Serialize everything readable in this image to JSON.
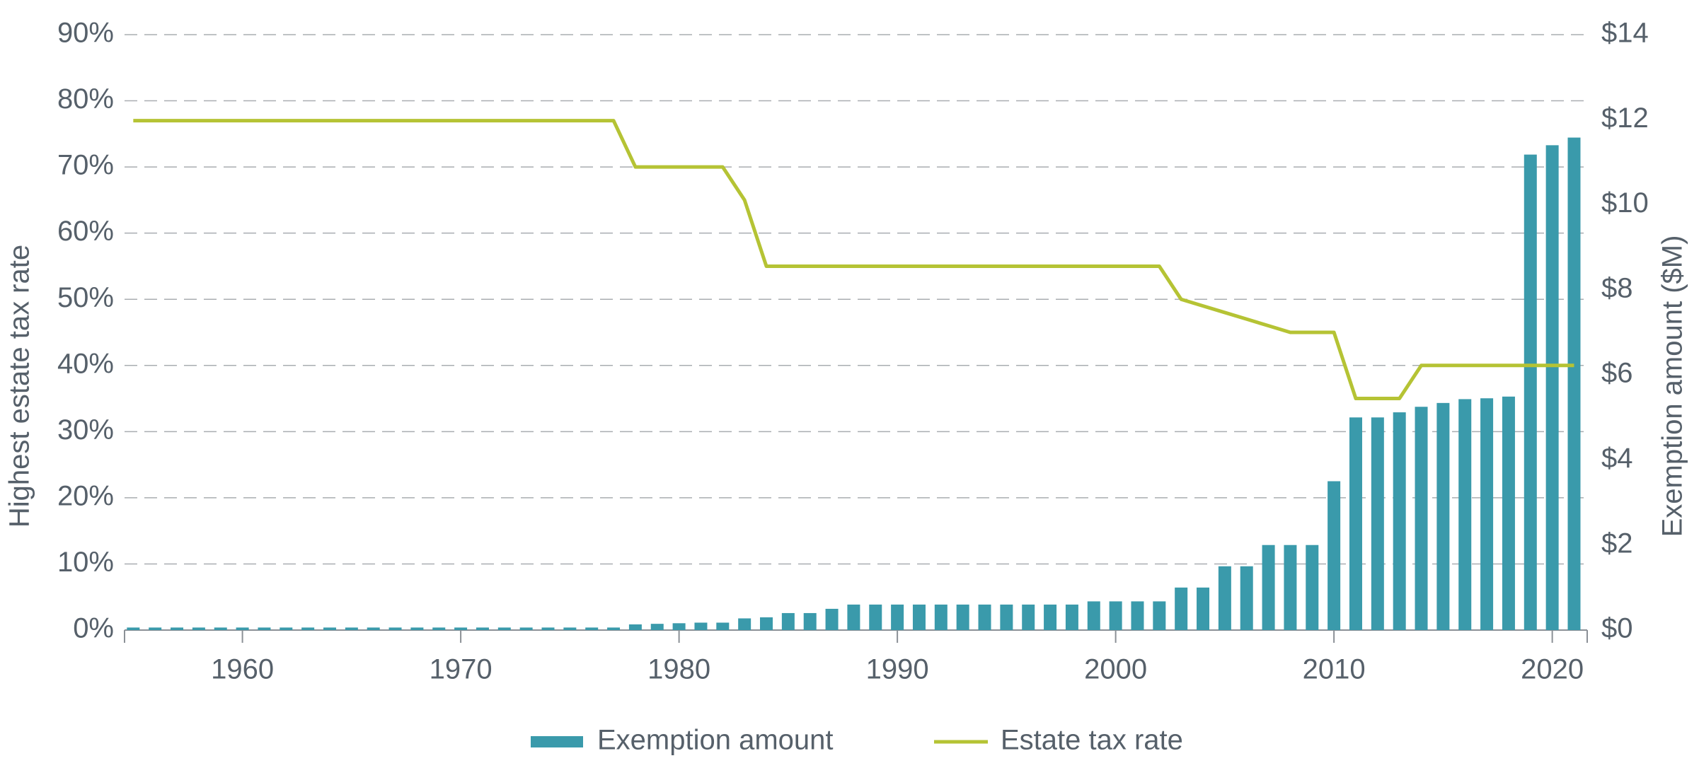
{
  "chart_data": {
    "type": "bar",
    "ylabel": "Highest estate tax rate",
    "y2label": "Exemption amount ($M)",
    "x": [
      1955,
      1956,
      1957,
      1958,
      1959,
      1960,
      1961,
      1962,
      1963,
      1964,
      1965,
      1966,
      1967,
      1968,
      1969,
      1970,
      1971,
      1972,
      1973,
      1974,
      1975,
      1976,
      1977,
      1978,
      1979,
      1980,
      1981,
      1982,
      1983,
      1984,
      1985,
      1986,
      1987,
      1988,
      1989,
      1990,
      1991,
      1992,
      1993,
      1994,
      1995,
      1996,
      1997,
      1998,
      1999,
      2000,
      2001,
      2002,
      2003,
      2004,
      2005,
      2006,
      2007,
      2008,
      2009,
      2010,
      2011,
      2012,
      2013,
      2014,
      2015,
      2016,
      2017,
      2018,
      2019,
      2020,
      2021
    ],
    "xlim": [
      1954.6,
      2021.6
    ],
    "xticks": [
      1960,
      1970,
      1980,
      1990,
      2000,
      2010,
      2020
    ],
    "ylim": [
      0,
      90
    ],
    "yticks": [
      {
        "value": 0,
        "label": "0%"
      },
      {
        "value": 10,
        "label": "10%"
      },
      {
        "value": 20,
        "label": "20%"
      },
      {
        "value": 30,
        "label": "30%"
      },
      {
        "value": 40,
        "label": "40%"
      },
      {
        "value": 50,
        "label": "50%"
      },
      {
        "value": 60,
        "label": "60%"
      },
      {
        "value": 70,
        "label": "70%"
      },
      {
        "value": 80,
        "label": "80%"
      },
      {
        "value": 90,
        "label": "90%"
      }
    ],
    "y2lim": [
      0,
      14
    ],
    "y2ticks": [
      {
        "value": 0,
        "label": "$0"
      },
      {
        "value": 2,
        "label": "$2"
      },
      {
        "value": 4,
        "label": "$4"
      },
      {
        "value": 6,
        "label": "$6"
      },
      {
        "value": 8,
        "label": "$8"
      },
      {
        "value": 10,
        "label": "$10"
      },
      {
        "value": 12,
        "label": "$12"
      },
      {
        "value": 14,
        "label": "$14"
      }
    ],
    "grid": true,
    "legend": "bottom",
    "series": [
      {
        "name": "Exemption amount",
        "type": "bar",
        "axis": "y2",
        "color": "#3a9aab",
        "values": [
          0.06,
          0.06,
          0.06,
          0.06,
          0.06,
          0.06,
          0.06,
          0.06,
          0.06,
          0.06,
          0.06,
          0.06,
          0.06,
          0.06,
          0.06,
          0.06,
          0.06,
          0.06,
          0.06,
          0.06,
          0.06,
          0.06,
          0.06,
          0.134,
          0.147,
          0.161,
          0.175,
          0.175,
          0.275,
          0.3,
          0.4,
          0.4,
          0.5,
          0.6,
          0.6,
          0.6,
          0.6,
          0.6,
          0.6,
          0.6,
          0.6,
          0.6,
          0.6,
          0.6,
          0.675,
          0.675,
          0.675,
          0.675,
          1.0,
          1.0,
          1.5,
          1.5,
          2.0,
          2.0,
          2.0,
          3.5,
          5.0,
          5.0,
          5.12,
          5.25,
          5.34,
          5.43,
          5.45,
          5.49,
          11.18,
          11.4,
          11.58
        ]
      },
      {
        "name": "Estate tax rate",
        "type": "line",
        "color": "#b5c334",
        "values": [
          77,
          77,
          77,
          77,
          77,
          77,
          77,
          77,
          77,
          77,
          77,
          77,
          77,
          77,
          77,
          77,
          77,
          77,
          77,
          77,
          77,
          77,
          77,
          70,
          70,
          70,
          70,
          70,
          65,
          55,
          55,
          55,
          55,
          55,
          55,
          55,
          55,
          55,
          55,
          55,
          55,
          55,
          55,
          55,
          55,
          55,
          55,
          55,
          50,
          49,
          48,
          47,
          46,
          45,
          45,
          45,
          35,
          35,
          35,
          40,
          40,
          40,
          40,
          40,
          40,
          40,
          40
        ]
      }
    ]
  }
}
